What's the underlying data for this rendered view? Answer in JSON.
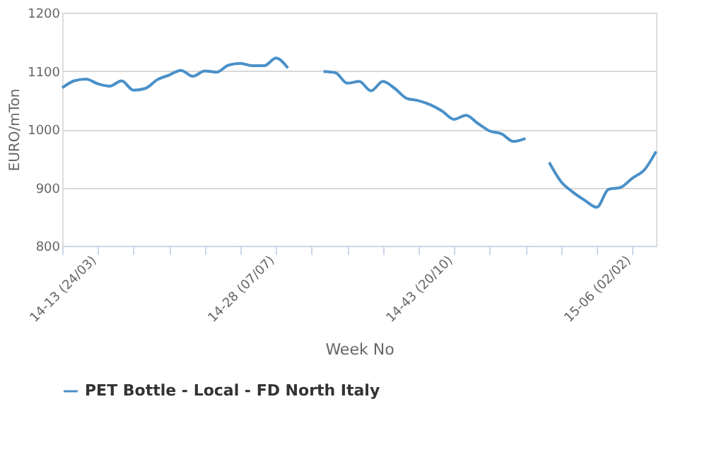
{
  "chart_data": {
    "type": "line",
    "categories": [
      "14-13 (24/03)",
      null,
      null,
      null,
      null,
      null,
      null,
      null,
      null,
      null,
      null,
      null,
      null,
      null,
      null,
      "14-28 (07/07)",
      null,
      null,
      null,
      null,
      null,
      null,
      null,
      null,
      null,
      null,
      null,
      null,
      null,
      null,
      "14-43 (20/10)",
      null,
      null,
      null,
      null,
      null,
      null,
      null,
      null,
      null,
      null,
      null,
      null,
      null,
      null,
      "15-06 (02/02)",
      null,
      null,
      null,
      null,
      null
    ],
    "series": [
      {
        "name": "PET Bottle - Local - FD North Italy",
        "color": "#4a90c8",
        "values": [
          1071,
          1083,
          1086,
          1078,
          1074,
          1083,
          1067,
          1070,
          1085,
          1093,
          1101,
          1091,
          1100,
          1098,
          1110,
          1113,
          1109,
          1109,
          1122,
          1105,
          null,
          null,
          1099,
          1097,
          1079,
          1082,
          1066,
          1082,
          1070,
          1053,
          1049,
          1042,
          1031,
          1017,
          1024,
          1010,
          997,
          992,
          979,
          984,
          null,
          943,
          910,
          892,
          878,
          866,
          897,
          900,
          916,
          930,
          962
        ]
      }
    ],
    "xlabel": "Week No",
    "ylabel": "EURO/mTon",
    "ylim": [
      800,
      1200
    ],
    "yticks": [
      800,
      900,
      1000,
      1100,
      1200
    ],
    "grid": "y",
    "legend": "bottom",
    "marker": "none",
    "line_style": "solid"
  }
}
